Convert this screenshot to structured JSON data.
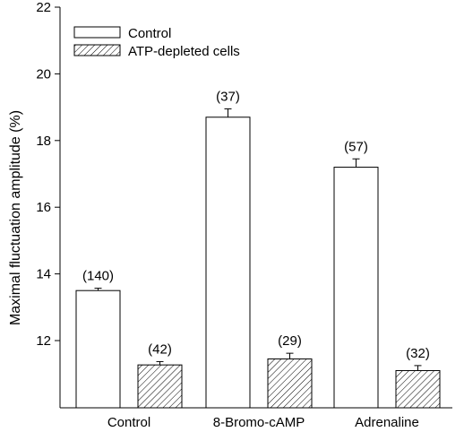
{
  "chart_data": {
    "type": "bar",
    "title": "",
    "xlabel": "",
    "ylabel": "Maximal fluctuation amplitude (%)",
    "ylim": [
      10.9,
      22
    ],
    "yticks": [
      12,
      14,
      16,
      18,
      20,
      22
    ],
    "grid": false,
    "legend_position": "top-left",
    "categories": [
      "Control",
      "8-Bromo-cAMP",
      "Adrenaline"
    ],
    "series": [
      {
        "name": "Control",
        "fill": "open",
        "values": [
          13.5,
          18.7,
          17.2
        ],
        "errors": [
          0.07,
          0.25,
          0.25
        ],
        "n_labels": [
          "(140)",
          "(37)",
          "(57)"
        ]
      },
      {
        "name": "ATP-depleted cells",
        "fill": "hatched",
        "values": [
          11.27,
          11.45,
          11.1
        ],
        "errors": [
          0.1,
          0.17,
          0.15
        ],
        "n_labels": [
          "(42)",
          "(29)",
          "(32)"
        ]
      }
    ],
    "colors": {
      "stroke": "#000000",
      "background": "#ffffff"
    }
  }
}
